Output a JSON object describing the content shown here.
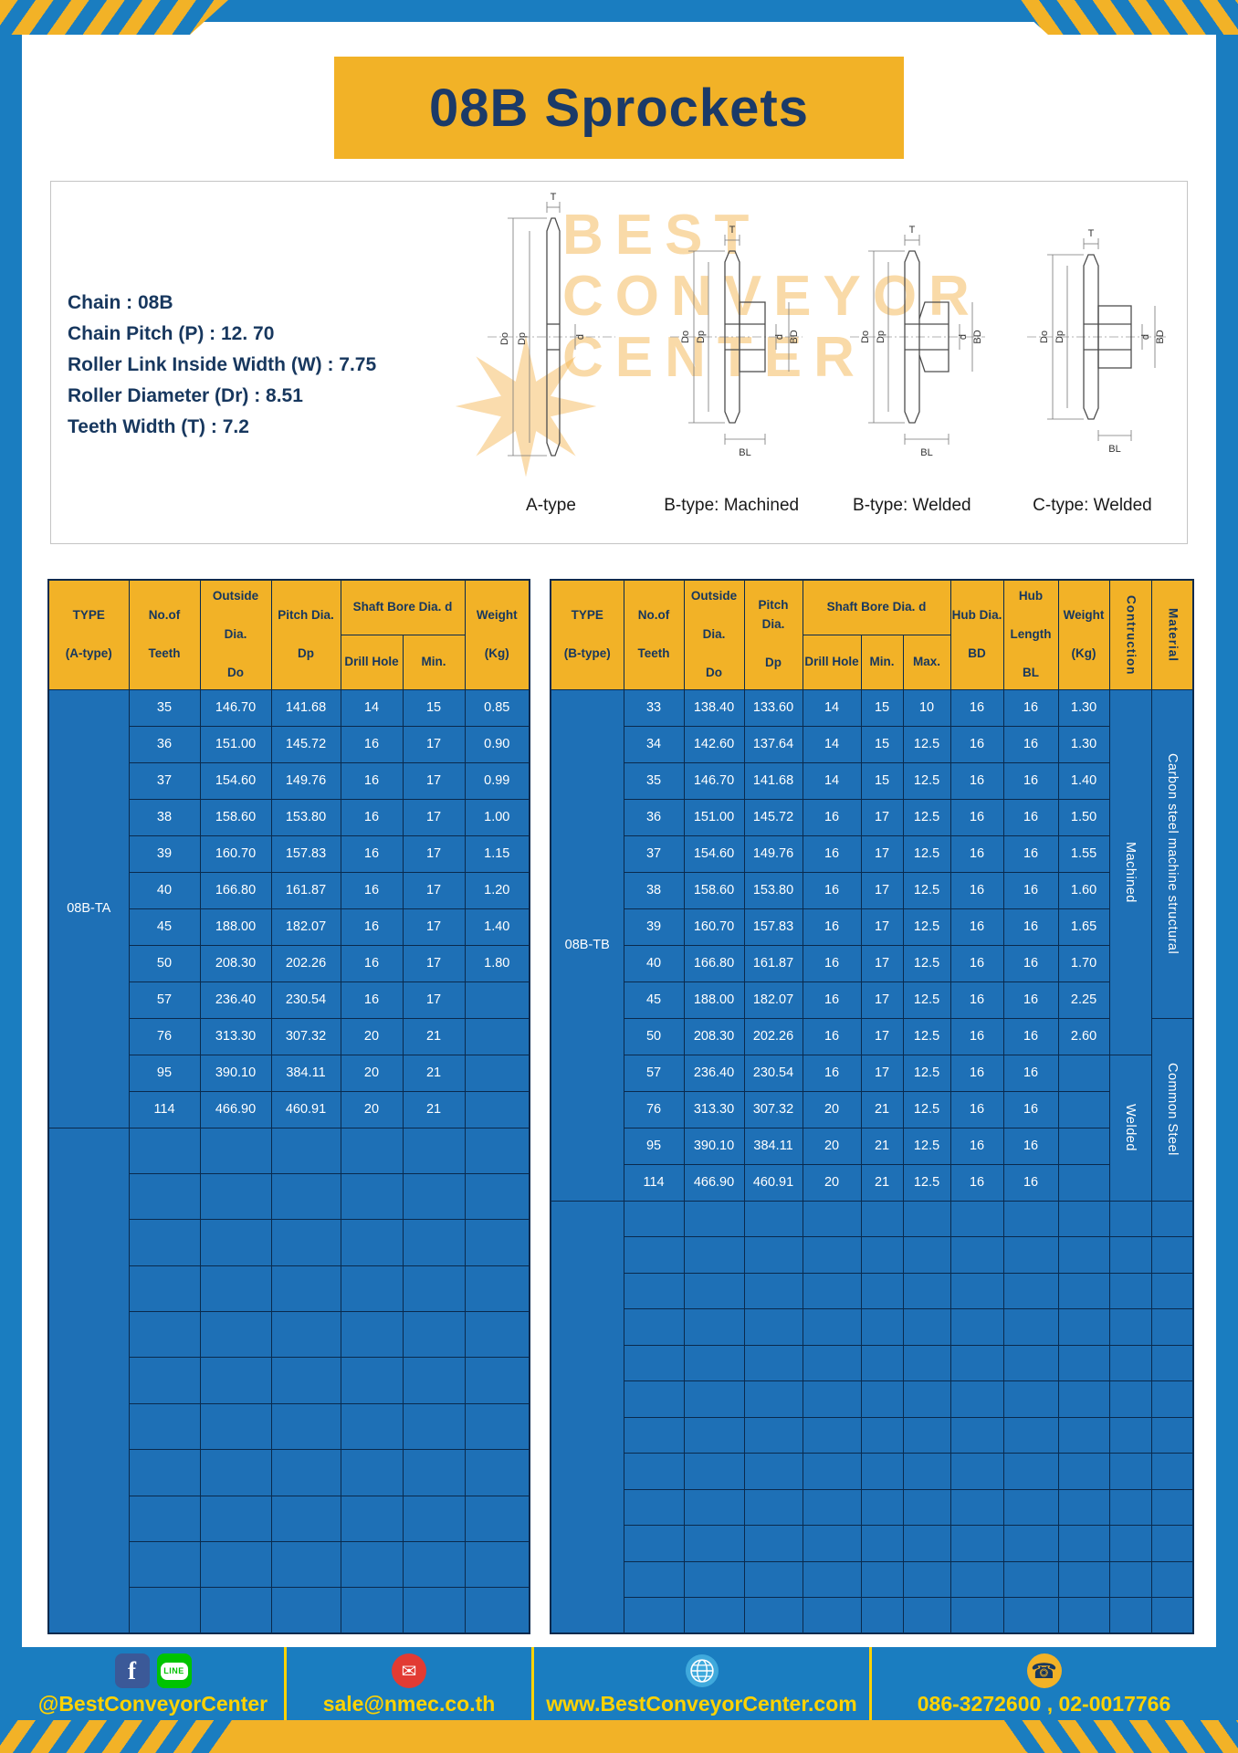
{
  "page": {
    "title": "08B Sprockets"
  },
  "specs": {
    "lines": [
      "Chain : 08B",
      "Chain Pitch (P) : 12. 70",
      "Roller Link Inside Width (W) : 7.75",
      "Roller Diameter (Dr) : 8.51",
      "Teeth Width (T) : 7.2"
    ]
  },
  "watermark": {
    "lines": [
      "BEST",
      "CONVEYOR",
      "CENTER"
    ]
  },
  "diagrams": [
    {
      "label": "A-type",
      "dims": {
        "t": "T",
        "do": "Do",
        "dp": "Dp",
        "d": "d"
      }
    },
    {
      "label": "B-type: Machined",
      "dims": {
        "t": "T",
        "do": "Do",
        "dp": "Dp",
        "d": "d",
        "bd": "BD",
        "bl": "BL"
      }
    },
    {
      "label": "B-type: Welded",
      "dims": {
        "t": "T",
        "do": "Do",
        "dp": "Dp",
        "d": "d",
        "bd": "BD",
        "bl": "BL"
      }
    },
    {
      "label": "C-type: Welded",
      "dims": {
        "t": "T",
        "do": "Do",
        "dp": "Dp",
        "d": "d",
        "bd": "BD",
        "bl": "BL"
      }
    }
  ],
  "table_a": {
    "headers": {
      "type": "TYPE\n\n(A-type)",
      "teeth": "No.of\n\nTeeth",
      "outside": "Outside\n\nDia.\n\nDo",
      "pitch": "Pitch Dia.\n\nDp",
      "shaft_bore": "Shaft Bore Dia. d",
      "drill": "Drill Hole",
      "min": "Min.",
      "weight": "Weight\n\n(Kg)"
    },
    "type_value": "08B-TA",
    "rows": [
      [
        "35",
        "146.70",
        "141.68",
        "14",
        "15",
        "0.85"
      ],
      [
        "36",
        "151.00",
        "145.72",
        "16",
        "17",
        "0.90"
      ],
      [
        "37",
        "154.60",
        "149.76",
        "16",
        "17",
        "0.99"
      ],
      [
        "38",
        "158.60",
        "153.80",
        "16",
        "17",
        "1.00"
      ],
      [
        "39",
        "160.70",
        "157.83",
        "16",
        "17",
        "1.15"
      ],
      [
        "40",
        "166.80",
        "161.87",
        "16",
        "17",
        "1.20"
      ],
      [
        "45",
        "188.00",
        "182.07",
        "16",
        "17",
        "1.40"
      ],
      [
        "50",
        "208.30",
        "202.26",
        "16",
        "17",
        "1.80"
      ],
      [
        "57",
        "236.40",
        "230.54",
        "16",
        "17",
        ""
      ],
      [
        "76",
        "313.30",
        "307.32",
        "20",
        "21",
        ""
      ],
      [
        "95",
        "390.10",
        "384.11",
        "20",
        "21",
        ""
      ],
      [
        "114",
        "466.90",
        "460.91",
        "20",
        "21",
        ""
      ]
    ],
    "empty_rows": 11
  },
  "table_b": {
    "headers": {
      "type": "TYPE\n\n(B-type)",
      "teeth": "No.of\n\nTeeth",
      "outside": "Outside\n\nDia.\n\nDo",
      "pitch": "Pitch Dia.\n\nDp",
      "shaft_bore": "Shaft Bore Dia. d",
      "drill": "Drill Hole",
      "min": "Min.",
      "max": "Max.",
      "hub_dia": "Hub Dia.\n\nBD",
      "hub_len": "Hub\n\nLength\n\nBL",
      "weight": "Weight\n\n(Kg)",
      "construction": "Contruction",
      "material": "Material"
    },
    "type_value": "08B-TB",
    "rows": [
      [
        "33",
        "138.40",
        "133.60",
        "14",
        "15",
        "10",
        "16",
        "16",
        "1.30"
      ],
      [
        "34",
        "142.60",
        "137.64",
        "14",
        "15",
        "12.5",
        "16",
        "16",
        "1.30"
      ],
      [
        "35",
        "146.70",
        "141.68",
        "14",
        "15",
        "12.5",
        "16",
        "16",
        "1.40"
      ],
      [
        "36",
        "151.00",
        "145.72",
        "16",
        "17",
        "12.5",
        "16",
        "16",
        "1.50"
      ],
      [
        "37",
        "154.60",
        "149.76",
        "16",
        "17",
        "12.5",
        "16",
        "16",
        "1.55"
      ],
      [
        "38",
        "158.60",
        "153.80",
        "16",
        "17",
        "12.5",
        "16",
        "16",
        "1.60"
      ],
      [
        "39",
        "160.70",
        "157.83",
        "16",
        "17",
        "12.5",
        "16",
        "16",
        "1.65"
      ],
      [
        "40",
        "166.80",
        "161.87",
        "16",
        "17",
        "12.5",
        "16",
        "16",
        "1.70"
      ],
      [
        "45",
        "188.00",
        "182.07",
        "16",
        "17",
        "12.5",
        "16",
        "16",
        "2.25"
      ],
      [
        "50",
        "208.30",
        "202.26",
        "16",
        "17",
        "12.5",
        "16",
        "16",
        "2.60"
      ],
      [
        "57",
        "236.40",
        "230.54",
        "16",
        "17",
        "12.5",
        "16",
        "16",
        ""
      ],
      [
        "76",
        "313.30",
        "307.32",
        "20",
        "21",
        "12.5",
        "16",
        "16",
        ""
      ],
      [
        "95",
        "390.10",
        "384.11",
        "20",
        "21",
        "12.5",
        "16",
        "16",
        ""
      ],
      [
        "114",
        "466.90",
        "460.91",
        "20",
        "21",
        "12.5",
        "16",
        "16",
        ""
      ]
    ],
    "construction_groups": [
      {
        "label": "Machined",
        "span": 10
      },
      {
        "label": "Welded",
        "span": 4
      }
    ],
    "material_groups": [
      {
        "label": "Carbon steel  machine structural",
        "span": 9
      },
      {
        "label": "Common  Steel",
        "span": 5
      }
    ],
    "empty_rows": 12
  },
  "footer": {
    "facebook_handle": "@BestConveyorCenter",
    "email": "sale@nmec.co.th",
    "website": "www.BestConveyorCenter.com",
    "phones": "086-3272600 , 02-0017766",
    "facebook_glyph": "f",
    "line_label": "LINE",
    "mail_glyph": "✉",
    "phone_glyph": "☎"
  },
  "colors": {
    "frame_blue": "#1a7dc0",
    "table_blue": "#1e70b6",
    "gold": "#f2b227",
    "navy_text": "#17375e",
    "footer_text": "#ffd200",
    "border_navy": "#0a2a4d"
  }
}
